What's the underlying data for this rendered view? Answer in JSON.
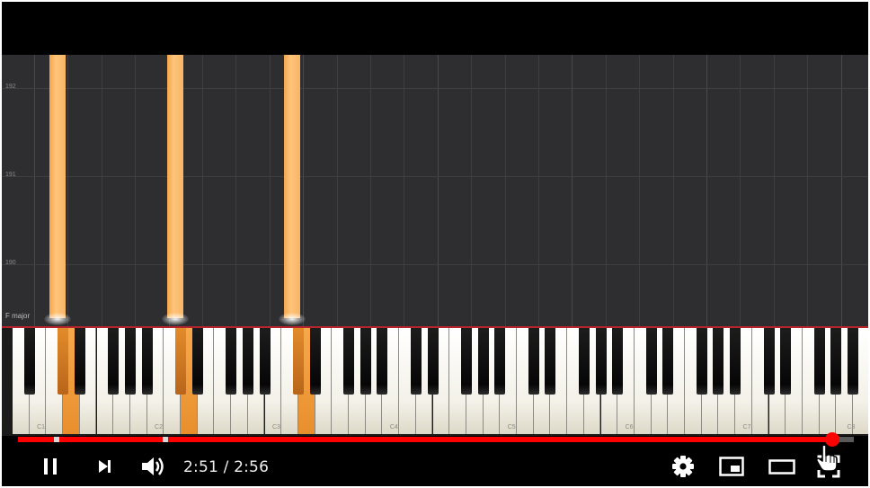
{
  "roll": {
    "measure_labels": [
      "192",
      "191",
      "190"
    ],
    "key_label": "F major"
  },
  "keyboard": {
    "octave_labels": [
      "C1",
      "C2",
      "C3",
      "C4",
      "C5",
      "C6",
      "C7",
      "C8"
    ],
    "pressed_note": "C"
  },
  "player": {
    "progress_fraction": 0.974,
    "chapter_fractions": [
      0.046,
      0.176
    ],
    "current_time": "2:51",
    "separator": "/",
    "total_time": "2:56",
    "time_display": "2:51 / 2:56",
    "is_playing": true
  },
  "icons": {
    "pause": "pause-icon",
    "next": "next-icon",
    "volume": "volume-icon",
    "settings": "gear-icon",
    "miniplayer": "miniplayer-icon",
    "theater": "theater-mode-icon",
    "fullscreen": "fullscreen-icon",
    "cursor": "hand-pointer-icon"
  },
  "colors": {
    "note": "#f7b565",
    "progress": "#ff0000",
    "roll_background": "#2e2e30",
    "red_line": "#b8242c"
  }
}
